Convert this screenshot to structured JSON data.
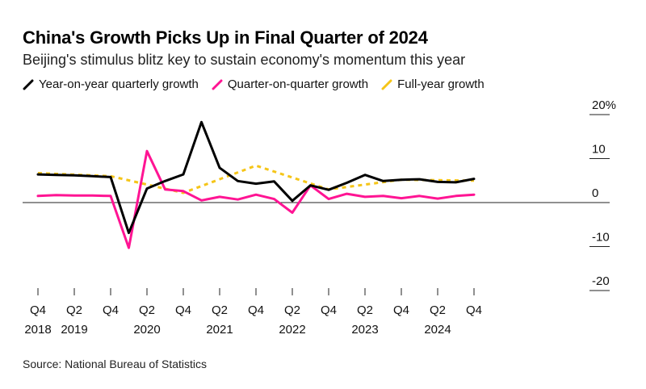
{
  "title": "China's Growth Picks Up in Final Quarter of 2024",
  "subtitle": "Beijing's stimulus blitz key to sustain economy's momentum this year",
  "source": "Source: National Bureau of Statistics",
  "colors": {
    "yoy": "#000000",
    "qoq": "#ff1493",
    "full_year": "#f5c518"
  },
  "chart_data": {
    "type": "line",
    "ylim": [
      -20,
      20
    ],
    "y_ticks": [
      {
        "value": 20,
        "label": "20%"
      },
      {
        "value": 10,
        "label": "10"
      },
      {
        "value": 0,
        "label": "0"
      },
      {
        "value": -10,
        "label": "-10"
      },
      {
        "value": -20,
        "label": "-20"
      }
    ],
    "x_ticks": [
      {
        "index": 0,
        "q": "Q4",
        "year": "2018"
      },
      {
        "index": 2,
        "q": "Q2",
        "year": "2019"
      },
      {
        "index": 4,
        "q": "Q4",
        "year": ""
      },
      {
        "index": 6,
        "q": "Q2",
        "year": "2020"
      },
      {
        "index": 8,
        "q": "Q4",
        "year": ""
      },
      {
        "index": 10,
        "q": "Q2",
        "year": "2021"
      },
      {
        "index": 12,
        "q": "Q4",
        "year": ""
      },
      {
        "index": 14,
        "q": "Q2",
        "year": "2022"
      },
      {
        "index": 16,
        "q": "Q4",
        "year": ""
      },
      {
        "index": 18,
        "q": "Q2",
        "year": "2023"
      },
      {
        "index": 20,
        "q": "Q4",
        "year": ""
      },
      {
        "index": 22,
        "q": "Q2",
        "year": "2024"
      },
      {
        "index": 24,
        "q": "Q4",
        "year": ""
      }
    ],
    "series": [
      {
        "key": "yoy",
        "name": "Year-on-year quarterly growth",
        "style": "solid",
        "values": [
          6.4,
          6.3,
          6.2,
          6.0,
          5.8,
          -6.9,
          3.2,
          4.9,
          6.4,
          18.3,
          7.9,
          4.9,
          4.3,
          4.8,
          0.4,
          3.9,
          2.9,
          4.5,
          6.3,
          4.9,
          5.2,
          5.3,
          4.7,
          4.6,
          5.4
        ]
      },
      {
        "key": "qoq",
        "name": "Quarter-on-quarter growth",
        "style": "solid",
        "values": [
          1.5,
          1.7,
          1.6,
          1.6,
          1.5,
          -10.3,
          11.7,
          3.0,
          2.6,
          0.5,
          1.3,
          0.7,
          1.8,
          0.8,
          -2.3,
          3.9,
          0.8,
          2.0,
          1.3,
          1.5,
          1.0,
          1.5,
          0.9,
          1.5,
          1.8
        ]
      },
      {
        "key": "full_year",
        "name": "Full-year growth",
        "style": "dashed",
        "points": [
          [
            0,
            6.7
          ],
          [
            4,
            6.0
          ],
          [
            8,
            2.2
          ],
          [
            12,
            8.4
          ],
          [
            16,
            3.0
          ],
          [
            20,
            5.2
          ],
          [
            24,
            5.0
          ]
        ]
      }
    ]
  }
}
